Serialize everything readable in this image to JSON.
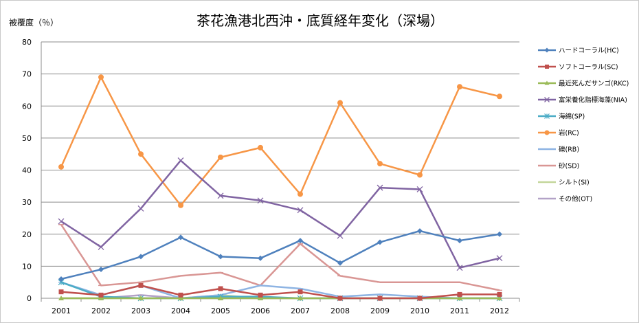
{
  "chart_data": {
    "type": "line",
    "title": "茶花漁港北西沖・底質経年変化（深場）",
    "ylabel": "被覆度（％）",
    "xlabel": "",
    "ylim": [
      0,
      80
    ],
    "yticks": [
      0,
      10,
      20,
      30,
      40,
      50,
      60,
      70,
      80
    ],
    "grid": true,
    "legend_position": "right",
    "categories": [
      "2001",
      "2002",
      "2003",
      "2004",
      "2005",
      "2006",
      "2007",
      "2008",
      "2009",
      "2010",
      "2011",
      "2012"
    ],
    "series": [
      {
        "name": "ハードコーラル(HC)",
        "color": "#4f81bd",
        "marker": "diamond",
        "values": [
          6,
          9,
          13,
          19,
          13,
          12.5,
          18,
          11,
          17.5,
          21,
          18,
          20
        ]
      },
      {
        "name": "ソフトコーラル(SC)",
        "color": "#c0504d",
        "marker": "square",
        "values": [
          2,
          1,
          4,
          1,
          3,
          1,
          2,
          0,
          0,
          0,
          1.2,
          1.2
        ]
      },
      {
        "name": "最近死んだサンゴ(RKC)",
        "color": "#9bbb59",
        "marker": "triangle",
        "values": [
          0,
          0,
          0,
          0,
          0,
          0,
          0,
          0,
          0,
          0,
          0,
          0
        ]
      },
      {
        "name": "富栄養化指標海藻(NIA)",
        "color": "#8064a2",
        "marker": "x",
        "values": [
          24,
          16,
          28,
          43,
          32,
          30.5,
          27.5,
          19.5,
          34.5,
          34,
          9.5,
          12.5
        ]
      },
      {
        "name": "海綿(SP)",
        "color": "#4bacc6",
        "marker": "star",
        "values": [
          5,
          0.5,
          0,
          0,
          0.5,
          0.5,
          0,
          0,
          0,
          0,
          0,
          0
        ]
      },
      {
        "name": "岩(RC)",
        "color": "#f79646",
        "marker": "circle",
        "values": [
          41,
          69,
          45,
          29,
          44,
          47,
          32.5,
          61,
          42,
          38.5,
          66,
          63
        ]
      },
      {
        "name": "礫(RB)",
        "color": "#8eb4e3",
        "marker": "dash",
        "values": [
          5,
          1,
          4,
          0,
          1,
          4,
          3,
          0.5,
          1.2,
          0.5,
          0,
          0
        ]
      },
      {
        "name": "砂(SD)",
        "color": "#d99694",
        "marker": "dash",
        "values": [
          23,
          4,
          5,
          7,
          8,
          4,
          17,
          7,
          5,
          5,
          5,
          2.5
        ]
      },
      {
        "name": "シルト(SI)",
        "color": "#c3d69b",
        "marker": "dash",
        "values": [
          0,
          0,
          0,
          0,
          1,
          0,
          0,
          0,
          0,
          0,
          0,
          0
        ]
      },
      {
        "name": "その他(OT)",
        "color": "#b3a2c7",
        "marker": "dash",
        "values": [
          0,
          0,
          1,
          0,
          0,
          0,
          0,
          0,
          0,
          0,
          0,
          0
        ]
      }
    ]
  }
}
